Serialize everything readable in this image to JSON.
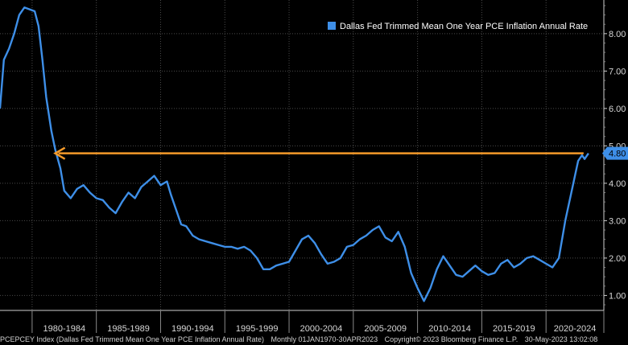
{
  "chart_data": {
    "type": "line",
    "series": [
      {
        "name": "Dallas Fed Trimmed Mean One Year PCE Inflation Annual Rate",
        "color": "#3e8fe8",
        "points": [
          [
            1977.5,
            6.0
          ],
          [
            1977.8,
            7.3
          ],
          [
            1978.2,
            7.6
          ],
          [
            1978.6,
            8.0
          ],
          [
            1979.0,
            8.5
          ],
          [
            1979.4,
            8.7
          ],
          [
            1979.8,
            8.65
          ],
          [
            1980.2,
            8.6
          ],
          [
            1980.5,
            8.2
          ],
          [
            1980.8,
            7.3
          ],
          [
            1981.1,
            6.3
          ],
          [
            1981.5,
            5.4
          ],
          [
            1981.8,
            4.9
          ],
          [
            1982.2,
            4.4
          ],
          [
            1982.5,
            3.8
          ],
          [
            1983.0,
            3.6
          ],
          [
            1983.5,
            3.85
          ],
          [
            1984.0,
            3.95
          ],
          [
            1984.5,
            3.75
          ],
          [
            1985.0,
            3.6
          ],
          [
            1985.5,
            3.55
          ],
          [
            1986.0,
            3.35
          ],
          [
            1986.5,
            3.2
          ],
          [
            1987.0,
            3.5
          ],
          [
            1987.5,
            3.75
          ],
          [
            1988.0,
            3.6
          ],
          [
            1988.5,
            3.9
          ],
          [
            1989.0,
            4.05
          ],
          [
            1989.5,
            4.2
          ],
          [
            1990.0,
            3.95
          ],
          [
            1990.5,
            4.05
          ],
          [
            1990.8,
            3.7
          ],
          [
            1991.2,
            3.3
          ],
          [
            1991.6,
            2.9
          ],
          [
            1992.0,
            2.85
          ],
          [
            1992.5,
            2.6
          ],
          [
            1993.0,
            2.5
          ],
          [
            1993.5,
            2.45
          ],
          [
            1994.0,
            2.4
          ],
          [
            1994.5,
            2.35
          ],
          [
            1995.0,
            2.3
          ],
          [
            1995.5,
            2.3
          ],
          [
            1996.0,
            2.25
          ],
          [
            1996.5,
            2.3
          ],
          [
            1997.0,
            2.2
          ],
          [
            1997.5,
            2.0
          ],
          [
            1998.0,
            1.7
          ],
          [
            1998.5,
            1.7
          ],
          [
            1999.0,
            1.8
          ],
          [
            1999.5,
            1.85
          ],
          [
            2000.0,
            1.9
          ],
          [
            2000.5,
            2.2
          ],
          [
            2001.0,
            2.5
          ],
          [
            2001.5,
            2.6
          ],
          [
            2002.0,
            2.4
          ],
          [
            2002.5,
            2.1
          ],
          [
            2003.0,
            1.85
          ],
          [
            2003.5,
            1.9
          ],
          [
            2004.0,
            2.0
          ],
          [
            2004.5,
            2.3
          ],
          [
            2005.0,
            2.35
          ],
          [
            2005.5,
            2.5
          ],
          [
            2006.0,
            2.6
          ],
          [
            2006.5,
            2.75
          ],
          [
            2007.0,
            2.85
          ],
          [
            2007.5,
            2.55
          ],
          [
            2008.0,
            2.45
          ],
          [
            2008.5,
            2.7
          ],
          [
            2009.0,
            2.3
          ],
          [
            2009.5,
            1.6
          ],
          [
            2010.0,
            1.2
          ],
          [
            2010.5,
            0.85
          ],
          [
            2011.0,
            1.2
          ],
          [
            2011.5,
            1.7
          ],
          [
            2012.0,
            2.05
          ],
          [
            2012.5,
            1.8
          ],
          [
            2013.0,
            1.55
          ],
          [
            2013.5,
            1.5
          ],
          [
            2014.0,
            1.65
          ],
          [
            2014.5,
            1.8
          ],
          [
            2015.0,
            1.65
          ],
          [
            2015.5,
            1.55
          ],
          [
            2016.0,
            1.6
          ],
          [
            2016.5,
            1.85
          ],
          [
            2017.0,
            1.95
          ],
          [
            2017.5,
            1.75
          ],
          [
            2018.0,
            1.85
          ],
          [
            2018.5,
            2.0
          ],
          [
            2019.0,
            2.05
          ],
          [
            2019.5,
            1.95
          ],
          [
            2020.0,
            1.85
          ],
          [
            2020.5,
            1.75
          ],
          [
            2021.0,
            2.0
          ],
          [
            2021.5,
            3.0
          ],
          [
            2022.0,
            3.8
          ],
          [
            2022.5,
            4.6
          ],
          [
            2022.8,
            4.75
          ],
          [
            2023.0,
            4.65
          ],
          [
            2023.3,
            4.8
          ]
        ]
      }
    ],
    "ylim": [
      0.6,
      8.9
    ],
    "xlim": [
      1977.5,
      2024.5
    ],
    "y_ticks": [
      "1.00",
      "2.00",
      "3.00",
      "4.00",
      "5.00",
      "6.00",
      "7.00",
      "8.00"
    ],
    "x_categories": [
      "1980-1984",
      "1985-1989",
      "1990-1994",
      "1995-1999",
      "2000-2004",
      "2005-2009",
      "2010-2014",
      "2015-2019",
      "2020-2024"
    ],
    "last_value_label": "4.80",
    "annotation_arrow": {
      "level": 4.8,
      "from_x": 2023.3,
      "to_x": 1981.8,
      "color": "#f49a2a"
    },
    "legend": {
      "label": "Dallas Fed Trimmed Mean One Year PCE Inflation Annual Rate",
      "position": "top-right"
    },
    "grid": true
  },
  "footer": {
    "series_info": "PCEPCEY Index (Dallas Fed Trimmed Mean One Year PCE Inflation Annual Rate)",
    "frequency": "Monthly 01JAN1970-30APR2023",
    "copyright": "Copyright© 2023 Bloomberg Finance L.P.",
    "timestamp": "30-May-2023 13:02:08"
  }
}
